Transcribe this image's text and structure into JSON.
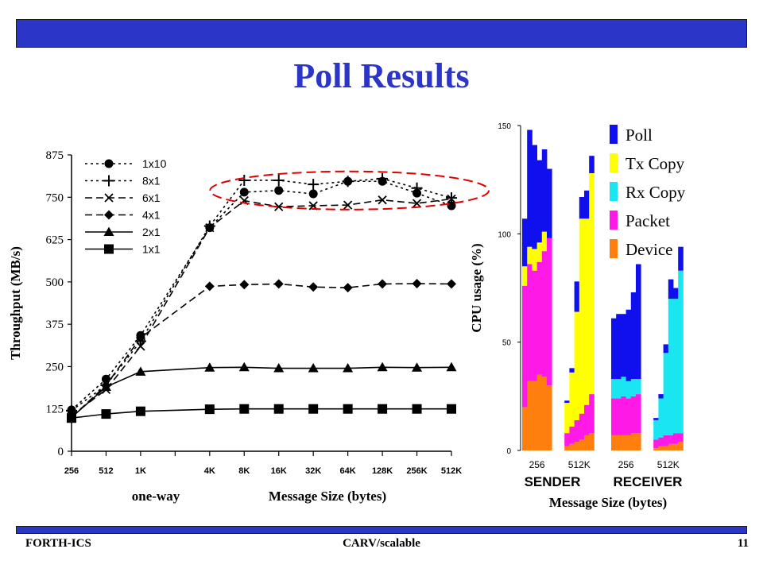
{
  "slide": {
    "title": "Poll Results",
    "footer_left": "FORTH-ICS",
    "footer_center": "CARV/scalable",
    "footer_right": "11",
    "colors": {
      "bar": "#2b36c8",
      "title": "#2b36c8",
      "highlight": "#e00000"
    }
  },
  "chart_data": [
    {
      "type": "line",
      "ylabel": "Throughput (MB/s)",
      "xlabel": "Message Size (bytes)",
      "x_note": "one-way",
      "categories": [
        "256",
        "512",
        "1K",
        "4K",
        "8K",
        "16K",
        "32K",
        "64K",
        "128K",
        "256K",
        "512K"
      ],
      "ylim": [
        0,
        875
      ],
      "yticks": [
        0,
        125,
        250,
        375,
        500,
        625,
        750,
        875
      ],
      "legend_position": "top-left",
      "series": [
        {
          "name": "1x10",
          "marker": "circle",
          "line": "dotted",
          "values": [
            122,
            213,
            342,
            660,
            765,
            770,
            760,
            797,
            797,
            762,
            725
          ]
        },
        {
          "name": "8x1",
          "marker": "plus",
          "line": "dotted",
          "values": [
            120,
            195,
            325,
            665,
            800,
            800,
            788,
            797,
            805,
            777,
            748
          ]
        },
        {
          "name": "6x1",
          "marker": "x",
          "line": "dashed",
          "values": [
            105,
            182,
            310,
            660,
            740,
            722,
            725,
            727,
            742,
            732,
            745
          ]
        },
        {
          "name": "4x1",
          "marker": "diamond",
          "line": "dashed",
          "values": [
            100,
            195,
            335,
            487,
            492,
            494,
            485,
            483,
            494,
            495,
            494
          ]
        },
        {
          "name": "2x1",
          "marker": "triangle",
          "line": "solid",
          "values": [
            100,
            190,
            235,
            247,
            248,
            245,
            245,
            245,
            248,
            247,
            248
          ]
        },
        {
          "name": "1x1",
          "marker": "square",
          "line": "solid",
          "values": [
            98,
            110,
            118,
            124,
            125,
            125,
            125,
            125,
            125,
            125,
            125
          ]
        }
      ],
      "annotation": "dashed ellipse highlighting 8K–512K peak region"
    },
    {
      "type": "bar",
      "stacked": true,
      "ylabel": "CPU  usage (%)",
      "xlabel": "Message Size (bytes)",
      "ylim": [
        0,
        150
      ],
      "yticks": [
        0,
        50,
        100,
        150
      ],
      "legend_position": "top-right",
      "series_order": [
        "Device",
        "Packet",
        "Rx Copy",
        "Tx Copy",
        "Poll"
      ],
      "colors": {
        "Poll": "#1010ee",
        "Tx Copy": "#ffff00",
        "Rx Copy": "#19e6f0",
        "Packet": "#ff19e6",
        "Device": "#ff7f0e"
      },
      "groups": [
        {
          "name": "SENDER",
          "tick_labels": [
            "256",
            "512K"
          ],
          "bars": [
            {
              "Device": 20,
              "Packet": 56,
              "Rx Copy": 0,
              "Tx Copy": 9,
              "Poll": 22
            },
            {
              "Device": 32,
              "Packet": 54,
              "Rx Copy": 0,
              "Tx Copy": 8,
              "Poll": 54
            },
            {
              "Device": 32,
              "Packet": 51,
              "Rx Copy": 0,
              "Tx Copy": 10,
              "Poll": 48
            },
            {
              "Device": 35,
              "Packet": 52,
              "Rx Copy": 0,
              "Tx Copy": 9,
              "Poll": 38
            },
            {
              "Device": 34,
              "Packet": 58,
              "Rx Copy": 0,
              "Tx Copy": 9,
              "Poll": 38
            },
            {
              "Device": 30,
              "Packet": 68,
              "Rx Copy": 0,
              "Tx Copy": 0,
              "Poll": 32
            },
            {
              "Device": 2,
              "Packet": 6,
              "Rx Copy": 0,
              "Tx Copy": 14,
              "Poll": 1
            },
            {
              "Device": 3,
              "Packet": 8,
              "Rx Copy": 0,
              "Tx Copy": 25,
              "Poll": 2
            },
            {
              "Device": 4,
              "Packet": 10,
              "Rx Copy": 0,
              "Tx Copy": 50,
              "Poll": 14
            },
            {
              "Device": 5,
              "Packet": 12,
              "Rx Copy": 0,
              "Tx Copy": 90,
              "Poll": 10
            },
            {
              "Device": 7,
              "Packet": 14,
              "Rx Copy": 0,
              "Tx Copy": 86,
              "Poll": 13
            },
            {
              "Device": 8,
              "Packet": 18,
              "Rx Copy": 0,
              "Tx Copy": 102,
              "Poll": 8
            }
          ]
        },
        {
          "name": "RECEIVER",
          "tick_labels": [
            "256",
            "512K"
          ],
          "bars": [
            {
              "Device": 7,
              "Packet": 17,
              "Rx Copy": 9,
              "Tx Copy": 0,
              "Poll": 28
            },
            {
              "Device": 7,
              "Packet": 17,
              "Rx Copy": 9,
              "Tx Copy": 0,
              "Poll": 30
            },
            {
              "Device": 7,
              "Packet": 18,
              "Rx Copy": 9,
              "Tx Copy": 0,
              "Poll": 29
            },
            {
              "Device": 7,
              "Packet": 17,
              "Rx Copy": 8,
              "Tx Copy": 0,
              "Poll": 33
            },
            {
              "Device": 8,
              "Packet": 17,
              "Rx Copy": 8,
              "Tx Copy": 0,
              "Poll": 40
            },
            {
              "Device": 8,
              "Packet": 18,
              "Rx Copy": 7,
              "Tx Copy": 0,
              "Poll": 53
            },
            {
              "Device": 1,
              "Packet": 4,
              "Rx Copy": 9,
              "Tx Copy": 0,
              "Poll": 1
            },
            {
              "Device": 2,
              "Packet": 4,
              "Rx Copy": 18,
              "Tx Copy": 0,
              "Poll": 2
            },
            {
              "Device": 2,
              "Packet": 5,
              "Rx Copy": 38,
              "Tx Copy": 0,
              "Poll": 4
            },
            {
              "Device": 3,
              "Packet": 4,
              "Rx Copy": 63,
              "Tx Copy": 0,
              "Poll": 9
            },
            {
              "Device": 3,
              "Packet": 5,
              "Rx Copy": 62,
              "Tx Copy": 0,
              "Poll": 5
            },
            {
              "Device": 4,
              "Packet": 4,
              "Rx Copy": 75,
              "Tx Copy": 0,
              "Poll": 11
            }
          ]
        }
      ]
    }
  ]
}
